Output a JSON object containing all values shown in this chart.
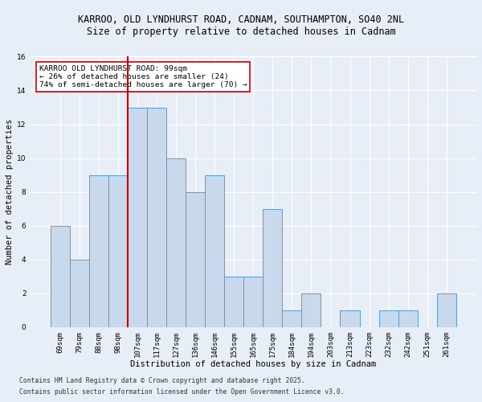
{
  "title_line1": "KARROO, OLD LYNDHURST ROAD, CADNAM, SOUTHAMPTON, SO40 2NL",
  "title_line2": "Size of property relative to detached houses in Cadnam",
  "xlabel": "Distribution of detached houses by size in Cadnam",
  "ylabel": "Number of detached properties",
  "categories": [
    "69sqm",
    "79sqm",
    "88sqm",
    "98sqm",
    "107sqm",
    "117sqm",
    "127sqm",
    "136sqm",
    "146sqm",
    "155sqm",
    "165sqm",
    "175sqm",
    "184sqm",
    "194sqm",
    "203sqm",
    "213sqm",
    "223sqm",
    "232sqm",
    "242sqm",
    "251sqm",
    "261sqm"
  ],
  "values": [
    6,
    4,
    9,
    9,
    13,
    13,
    10,
    8,
    9,
    3,
    3,
    7,
    1,
    2,
    0,
    1,
    0,
    1,
    1,
    0,
    2
  ],
  "bar_color": "#c9d9ed",
  "bar_edge_color": "#5b9bd5",
  "vline_x": 3.5,
  "vline_color": "#cc0000",
  "annotation_text": "KARROO OLD LYNDHURST ROAD: 99sqm\n← 26% of detached houses are smaller (24)\n74% of semi-detached houses are larger (70) →",
  "annotation_box_color": "#ffffff",
  "annotation_box_edge": "#cc0000",
  "ylim": [
    0,
    16
  ],
  "yticks": [
    0,
    2,
    4,
    6,
    8,
    10,
    12,
    14,
    16
  ],
  "background_color": "#e8eef7",
  "grid_color": "#ffffff",
  "footer_line1": "Contains HM Land Registry data © Crown copyright and database right 2025.",
  "footer_line2": "Contains public sector information licensed under the Open Government Licence v3.0.",
  "title_fontsize": 8.5,
  "title2_fontsize": 8.5,
  "axis_label_fontsize": 7.5,
  "tick_fontsize": 6.5,
  "annotation_fontsize": 6.8,
  "footer_fontsize": 5.8
}
